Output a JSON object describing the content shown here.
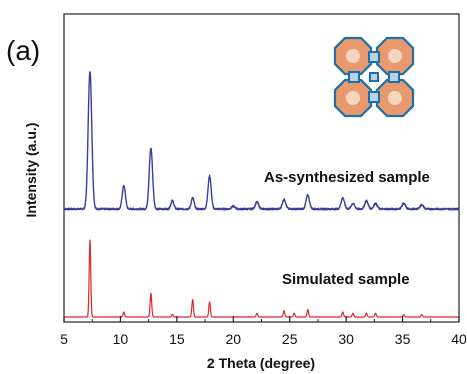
{
  "chart_data": {
    "type": "line",
    "panel_label": "(a)",
    "xlabel": "2 Theta (degree)",
    "ylabel": "Intensity (a.u.)",
    "xlim": [
      5,
      40
    ],
    "x_ticks": [
      5,
      10,
      15,
      20,
      25,
      30,
      35,
      40
    ],
    "x_tick_labels": [
      "5",
      "10",
      "15",
      "20",
      "25",
      "30",
      "35",
      "40"
    ],
    "y_ticks_shown": false,
    "grid": false,
    "legend": "none (inline series labels)",
    "inset": "framework structure illustration, top-right",
    "series": [
      {
        "name": "As-synthesized sample",
        "color": "#3a3f9a",
        "baseline": 0.0,
        "noise": 0.006,
        "peaks": [
          {
            "x": 7.3,
            "y": 1.0,
            "w": 0.16
          },
          {
            "x": 10.3,
            "y": 0.17,
            "w": 0.14
          },
          {
            "x": 12.7,
            "y": 0.44,
            "w": 0.15
          },
          {
            "x": 14.6,
            "y": 0.06,
            "w": 0.13
          },
          {
            "x": 16.4,
            "y": 0.08,
            "w": 0.13
          },
          {
            "x": 17.9,
            "y": 0.24,
            "w": 0.14
          },
          {
            "x": 20.0,
            "y": 0.02,
            "w": 0.15
          },
          {
            "x": 22.1,
            "y": 0.05,
            "w": 0.15
          },
          {
            "x": 24.5,
            "y": 0.07,
            "w": 0.15
          },
          {
            "x": 26.6,
            "y": 0.1,
            "w": 0.15
          },
          {
            "x": 29.7,
            "y": 0.08,
            "w": 0.15
          },
          {
            "x": 30.6,
            "y": 0.04,
            "w": 0.15
          },
          {
            "x": 31.8,
            "y": 0.06,
            "w": 0.15
          },
          {
            "x": 32.6,
            "y": 0.04,
            "w": 0.15
          },
          {
            "x": 35.1,
            "y": 0.04,
            "w": 0.15
          },
          {
            "x": 36.7,
            "y": 0.03,
            "w": 0.15
          }
        ]
      },
      {
        "name": "Simulated sample",
        "color": "#e0262a",
        "baseline": 0.0,
        "noise": 0.0,
        "peaks": [
          {
            "x": 7.3,
            "y": 0.62,
            "w": 0.07
          },
          {
            "x": 10.3,
            "y": 0.04,
            "w": 0.07
          },
          {
            "x": 12.7,
            "y": 0.19,
            "w": 0.07
          },
          {
            "x": 14.6,
            "y": 0.02,
            "w": 0.07
          },
          {
            "x": 16.4,
            "y": 0.14,
            "w": 0.07
          },
          {
            "x": 17.9,
            "y": 0.12,
            "w": 0.07
          },
          {
            "x": 22.1,
            "y": 0.03,
            "w": 0.07
          },
          {
            "x": 24.5,
            "y": 0.05,
            "w": 0.07
          },
          {
            "x": 25.4,
            "y": 0.03,
            "w": 0.07
          },
          {
            "x": 26.6,
            "y": 0.06,
            "w": 0.07
          },
          {
            "x": 29.7,
            "y": 0.04,
            "w": 0.07
          },
          {
            "x": 30.6,
            "y": 0.03,
            "w": 0.07
          },
          {
            "x": 31.8,
            "y": 0.03,
            "w": 0.07
          },
          {
            "x": 32.6,
            "y": 0.03,
            "w": 0.07
          },
          {
            "x": 35.1,
            "y": 0.02,
            "w": 0.07
          },
          {
            "x": 36.7,
            "y": 0.02,
            "w": 0.07
          }
        ]
      }
    ]
  }
}
